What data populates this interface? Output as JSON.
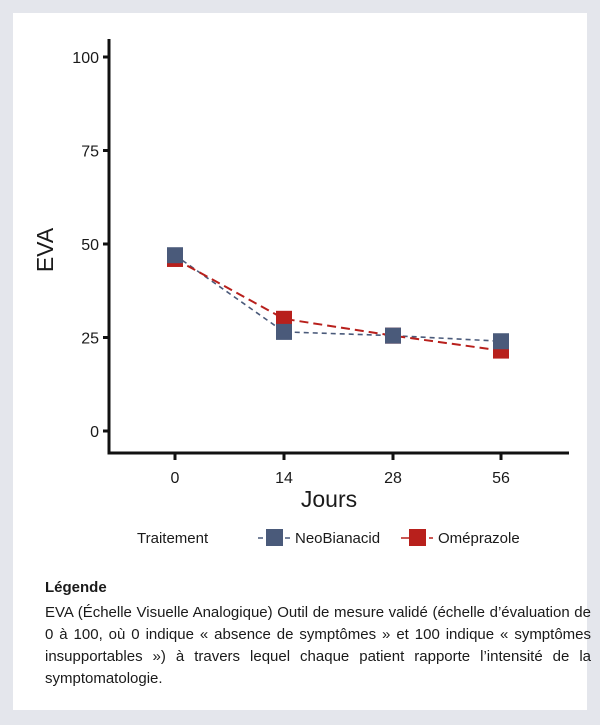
{
  "chart_data": {
    "type": "line",
    "x": [
      "0",
      "14",
      "28",
      "56"
    ],
    "series": [
      {
        "name": "NeoBianacid",
        "values": [
          47,
          26.5,
          25.5,
          24
        ],
        "color": "#4a5a7a",
        "dash": "dashed-short"
      },
      {
        "name": "Oméprazole",
        "values": [
          46,
          30,
          25.5,
          21.5
        ],
        "color": "#b8201c",
        "dash": "dashed-long"
      }
    ],
    "xlabel": "Jours",
    "ylabel": "EVA",
    "ylim": [
      0,
      100
    ],
    "yticks": [
      0,
      25,
      50,
      75,
      100
    ],
    "legend": {
      "title": "Traitement",
      "placement": "bottom"
    },
    "grid": false
  },
  "caption": {
    "title": "Légende",
    "text": "EVA (Échelle Visuelle Analogique) Outil de mesure validé (échelle d’évaluation de 0 à 100, où 0 indique « absence de symptômes » et 100 indique « symptômes insupportables ») à travers lequel chaque patient rapporte l’intensité de la symptomatologie."
  }
}
